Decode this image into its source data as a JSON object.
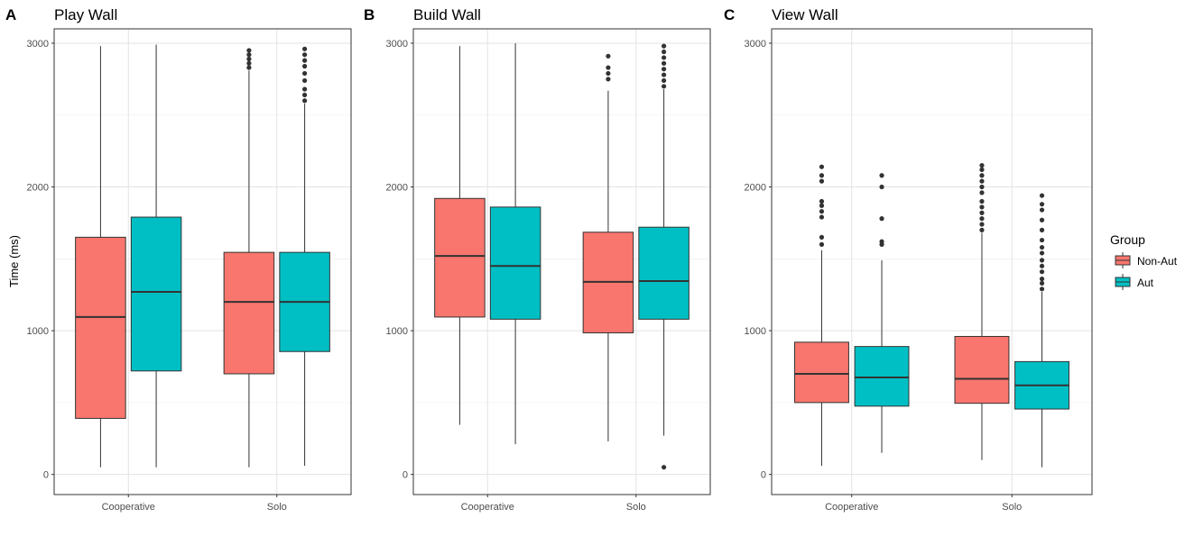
{
  "legend": {
    "title": "Group",
    "items": [
      {
        "label": "Non-Aut",
        "color": "#F8766D"
      },
      {
        "label": "Aut",
        "color": "#00BFC4"
      }
    ]
  },
  "y_axis_title": "Time (ms)",
  "chart_data": [
    {
      "type": "box",
      "tag": "A",
      "title": "Play Wall",
      "categories": [
        "Cooperative",
        "Solo"
      ],
      "ylim": [
        -140,
        3100
      ],
      "yticks": [
        0,
        1000,
        2000,
        3000
      ],
      "grid": true,
      "series": [
        {
          "name": "Non-Aut",
          "boxes": [
            {
              "whisker_low": 50,
              "q1": 390,
              "median": 1095,
              "q3": 1650,
              "whisker_high": 2980,
              "outliers": []
            },
            {
              "whisker_low": 50,
              "q1": 700,
              "median": 1200,
              "q3": 1545,
              "whisker_high": 2810,
              "outliers": [
                2830,
                2860,
                2890,
                2920,
                2950
              ]
            }
          ]
        },
        {
          "name": "Aut",
          "boxes": [
            {
              "whisker_low": 50,
              "q1": 720,
              "median": 1270,
              "q3": 1790,
              "whisker_high": 2990,
              "outliers": []
            },
            {
              "whisker_low": 60,
              "q1": 855,
              "median": 1200,
              "q3": 1545,
              "whisker_high": 2580,
              "outliers": [
                2600,
                2640,
                2680,
                2740,
                2790,
                2840,
                2880,
                2920,
                2960
              ]
            }
          ]
        }
      ]
    },
    {
      "type": "box",
      "tag": "B",
      "title": "Build Wall",
      "categories": [
        "Cooperative",
        "Solo"
      ],
      "ylim": [
        -140,
        3100
      ],
      "yticks": [
        0,
        1000,
        2000,
        3000
      ],
      "grid": true,
      "series": [
        {
          "name": "Non-Aut",
          "boxes": [
            {
              "whisker_low": 345,
              "q1": 1095,
              "median": 1520,
              "q3": 1920,
              "whisker_high": 2980,
              "outliers": []
            },
            {
              "whisker_low": 230,
              "q1": 985,
              "median": 1340,
              "q3": 1685,
              "whisker_high": 2670,
              "outliers": [
                2750,
                2790,
                2830,
                2910
              ]
            }
          ]
        },
        {
          "name": "Aut",
          "boxes": [
            {
              "whisker_low": 210,
              "q1": 1080,
              "median": 1450,
              "q3": 1860,
              "whisker_high": 3000,
              "outliers": []
            },
            {
              "whisker_low": 270,
              "q1": 1080,
              "median": 1345,
              "q3": 1720,
              "whisker_high": 2680,
              "outliers": [
                50,
                2700,
                2740,
                2780,
                2820,
                2860,
                2900,
                2940,
                2980
              ]
            }
          ]
        }
      ]
    },
    {
      "type": "box",
      "tag": "C",
      "title": "View Wall",
      "categories": [
        "Cooperative",
        "Solo"
      ],
      "ylim": [
        -140,
        3100
      ],
      "yticks": [
        0,
        1000,
        2000,
        3000
      ],
      "grid": true,
      "series": [
        {
          "name": "Non-Aut",
          "boxes": [
            {
              "whisker_low": 60,
              "q1": 500,
              "median": 700,
              "q3": 920,
              "whisker_high": 1560,
              "outliers": [
                1600,
                1650,
                1790,
                1830,
                1870,
                1900,
                2040,
                2080,
                2140
              ]
            },
            {
              "whisker_low": 100,
              "q1": 495,
              "median": 665,
              "q3": 960,
              "whisker_high": 1680,
              "outliers": [
                1700,
                1740,
                1780,
                1820,
                1860,
                1900,
                1960,
                2000,
                2040,
                2080,
                2120,
                2150
              ]
            }
          ]
        },
        {
          "name": "Aut",
          "boxes": [
            {
              "whisker_low": 150,
              "q1": 475,
              "median": 675,
              "q3": 890,
              "whisker_high": 1490,
              "outliers": [
                1600,
                1620,
                1780,
                2000,
                2080
              ]
            },
            {
              "whisker_low": 50,
              "q1": 455,
              "median": 620,
              "q3": 785,
              "whisker_high": 1270,
              "outliers": [
                1290,
                1330,
                1360,
                1410,
                1450,
                1490,
                1540,
                1580,
                1630,
                1700,
                1770,
                1840,
                1880,
                1940
              ]
            }
          ]
        }
      ]
    }
  ]
}
